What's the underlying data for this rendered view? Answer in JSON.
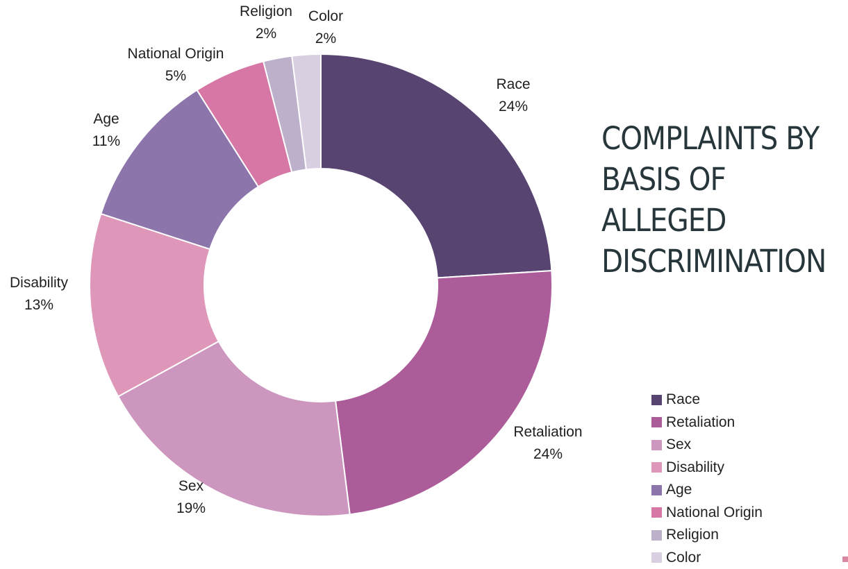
{
  "title": "COMPLAINTS BY BASIS OF ALLEGED DISCRIMINATION",
  "colors": {
    "Race": "#574470",
    "Retaliation": "#ad5c9a",
    "Sex": "#cc96bf",
    "Disability": "#de97b9",
    "Age": "#8c75ab",
    "National Origin": "#d677a6",
    "Religion": "#bcb0cb",
    "Color": "#d8cfe0",
    "corner_mark": "#d9899f"
  },
  "chart_data": {
    "type": "pie",
    "variant": "donut",
    "title": "COMPLAINTS BY BASIS OF ALLEGED DISCRIMINATION",
    "categories": [
      "Race",
      "Retaliation",
      "Sex",
      "Disability",
      "Age",
      "National Origin",
      "Religion",
      "Color"
    ],
    "values": [
      24,
      24,
      19,
      13,
      11,
      5,
      2,
      2
    ],
    "value_labels": [
      "24%",
      "24%",
      "19%",
      "13%",
      "11%",
      "5%",
      "2%",
      "2%"
    ],
    "legend_position": "bottom-right"
  }
}
